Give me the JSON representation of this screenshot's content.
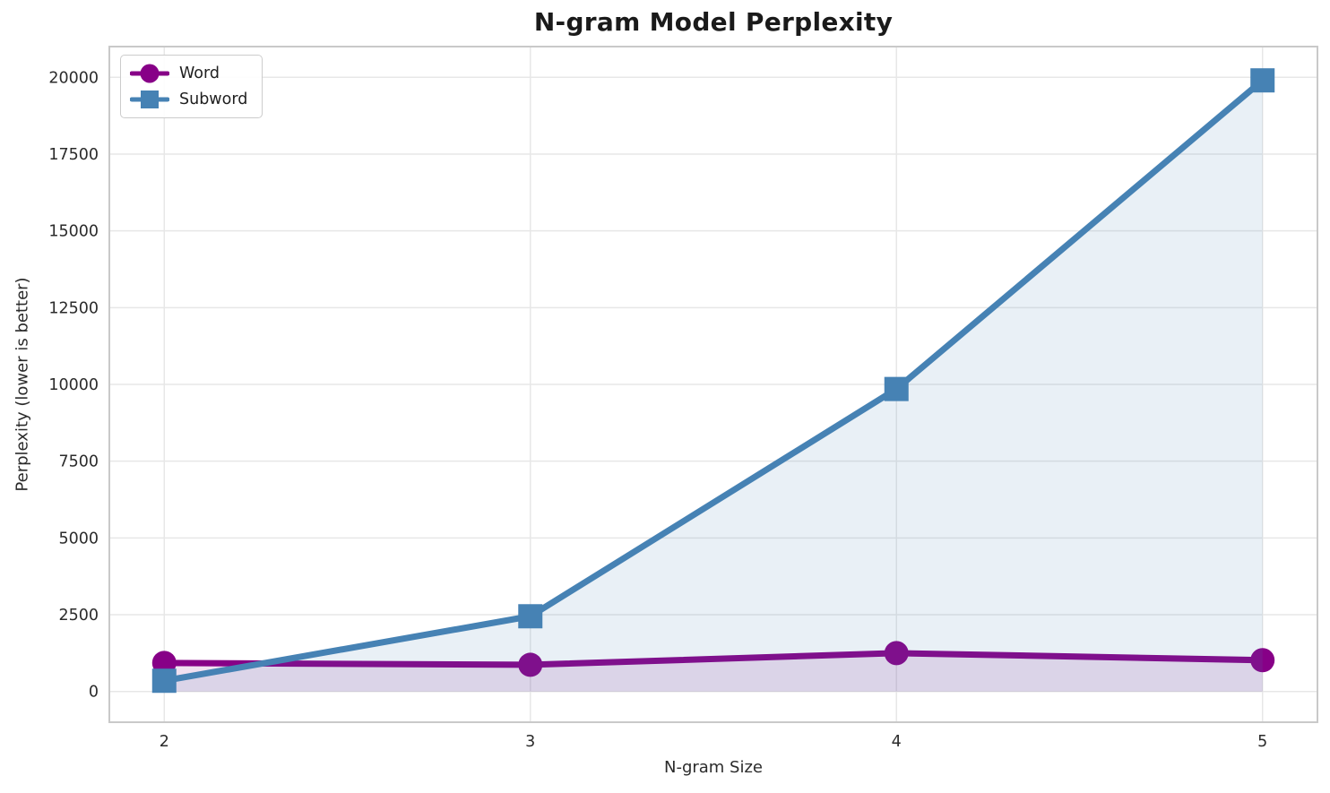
{
  "chart_data": {
    "type": "line",
    "title": "N-gram Model Perplexity",
    "xlabel": "N-gram Size",
    "ylabel": "Perplexity (lower is better)",
    "x": [
      2,
      3,
      4,
      5
    ],
    "series": [
      {
        "name": "Word",
        "color": "#870087",
        "marker": "circle",
        "values": [
          930,
          870,
          1250,
          1020
        ]
      },
      {
        "name": "Subword",
        "color": "#4682B4",
        "marker": "square",
        "values": [
          350,
          2450,
          9850,
          19900
        ]
      }
    ],
    "xticks": [
      "2",
      "3",
      "4",
      "5"
    ],
    "xtick_values": [
      2,
      3,
      4,
      5
    ],
    "yticks": [
      "0",
      "2500",
      "5000",
      "7500",
      "10000",
      "12500",
      "15000",
      "17500",
      "20000"
    ],
    "ytick_values": [
      0,
      2500,
      5000,
      7500,
      10000,
      12500,
      15000,
      17500,
      20000
    ],
    "xlim": [
      1.85,
      5.15
    ],
    "ylim": [
      -1000,
      21000
    ],
    "grid": true,
    "grid_color": "#e7e7e7",
    "spine_color": "#c9c9c9",
    "legend_position": "upper left",
    "area_fill_to": 0,
    "fill_opacity": 0.12
  }
}
